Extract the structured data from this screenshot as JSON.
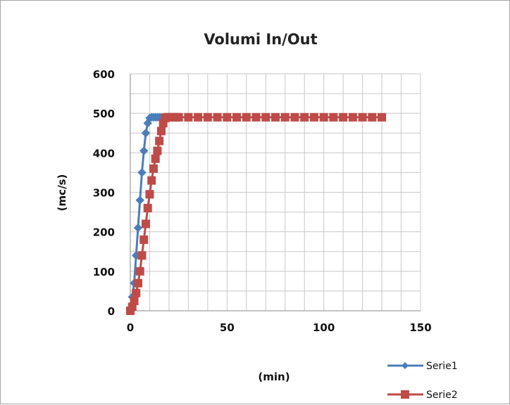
{
  "chart_data": {
    "type": "scatter",
    "title": "Volumi In/Out",
    "xlabel": "(min)",
    "ylabel": "(mc/s)",
    "xlim": [
      0,
      150
    ],
    "ylim": [
      0,
      600
    ],
    "x_ticks": [
      "0",
      "50",
      "100",
      "150"
    ],
    "y_ticks": [
      "0",
      "100",
      "200",
      "300",
      "400",
      "500",
      "600"
    ],
    "grid": true,
    "legend_position": "bottom-right",
    "series": [
      {
        "name": "Serie1",
        "color": "#4a7ebb",
        "marker": "diamond",
        "x": [
          0,
          1,
          2,
          3,
          4,
          5,
          6,
          7,
          8,
          9,
          10,
          11,
          12,
          13,
          14,
          15,
          16,
          17,
          18
        ],
        "y": [
          0,
          35,
          70,
          140,
          210,
          280,
          350,
          405,
          450,
          475,
          488,
          490,
          490,
          490,
          490,
          490,
          490,
          490,
          490
        ]
      },
      {
        "name": "Serie2",
        "color": "#be4b48",
        "marker": "square",
        "x": [
          0,
          1,
          2,
          3,
          4,
          5,
          6,
          7,
          8,
          9,
          10,
          11,
          12,
          13,
          14,
          15,
          16,
          17,
          18,
          19,
          20,
          21,
          22,
          23,
          24,
          25,
          30,
          35,
          40,
          45,
          50,
          55,
          60,
          65,
          70,
          75,
          80,
          85,
          90,
          95,
          100,
          105,
          110,
          115,
          120,
          125,
          130
        ],
        "y": [
          0,
          10,
          25,
          45,
          70,
          100,
          140,
          180,
          220,
          260,
          295,
          330,
          360,
          385,
          405,
          430,
          455,
          475,
          488,
          490,
          490,
          490,
          490,
          490,
          490,
          490,
          490,
          490,
          490,
          490,
          490,
          490,
          490,
          490,
          490,
          490,
          490,
          490,
          490,
          490,
          490,
          490,
          490,
          490,
          490,
          490,
          490
        ]
      }
    ]
  }
}
